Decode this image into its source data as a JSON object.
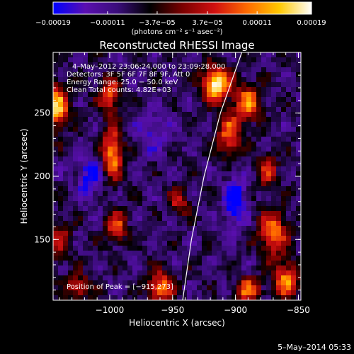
{
  "chart_data": {
    "type": "heatmap",
    "title": "Reconstructed RHESSI Image",
    "xlabel": "Heliocentric X (arcsec)",
    "ylabel": "Heliocentric Y (arcsec)",
    "xlim": [
      -1045,
      -848
    ],
    "ylim": [
      102,
      298
    ],
    "x_ticks": [
      -1000,
      -950,
      -900,
      -850
    ],
    "x_tick_labels": [
      "−1000",
      "−950",
      "−900",
      "−850"
    ],
    "y_ticks": [
      150,
      200,
      250
    ],
    "y_tick_labels": [
      "150",
      "200",
      "250"
    ],
    "colorbar": {
      "ticks": [
        -0.00019,
        -0.00011,
        -3.7e-05,
        3.7e-05,
        0.00011,
        0.00019
      ],
      "tick_labels": [
        "−0.00019",
        "−0.00011",
        "−3.7e−05",
        "3.7e−05",
        "0.00011",
        "0.00019"
      ],
      "range": [
        -0.00019,
        0.00019
      ],
      "unit_label": "(photons cm⁻² s⁻¹ asec⁻²)",
      "colors": [
        "#0000ff",
        "#5a0fb0",
        "#3a0d7a",
        "#000000",
        "#7a0000",
        "#d01010",
        "#ff6a00",
        "#ffc800",
        "#ffffff"
      ]
    },
    "annotations": [
      "4–May–2012 23:06:24.000 to 23:09:28.000",
      "Detectors: 3F 5F 6F 7F 8F 9F, Att 0",
      "Energy Range: 25.0 − 50.0 keV",
      "Clean     Total counts: 4.82E+03"
    ],
    "peak_label": "Position of Peak = [−915,273]",
    "peak": {
      "x": -915,
      "y": 273
    },
    "limb_curve": [
      [
        -942,
        102
      ],
      [
        -935,
        150
      ],
      [
        -925,
        200
      ],
      [
        -912,
        250
      ],
      [
        -895,
        298
      ]
    ],
    "intensity_map": {
      "note_units": "values are fractions of the colorbar range: -1 = -0.00019, +1 = +0.00019",
      "background": -0.45,
      "sources": [
        {
          "x": -915,
          "y": 273,
          "amp": 1.45,
          "sx": 8,
          "sy": 9
        },
        {
          "x": -890,
          "y": 258,
          "amp": 1.0,
          "sx": 7,
          "sy": 10
        },
        {
          "x": -905,
          "y": 233,
          "amp": 0.9,
          "sx": 7,
          "sy": 12
        },
        {
          "x": -875,
          "y": 205,
          "amp": 0.7,
          "sx": 6,
          "sy": 9
        },
        {
          "x": -870,
          "y": 155,
          "amp": 1.0,
          "sx": 8,
          "sy": 12
        },
        {
          "x": -860,
          "y": 118,
          "amp": 1.0,
          "sx": 7,
          "sy": 10
        },
        {
          "x": -890,
          "y": 110,
          "amp": 0.9,
          "sx": 7,
          "sy": 7
        },
        {
          "x": -960,
          "y": 112,
          "amp": 1.0,
          "sx": 7,
          "sy": 9
        },
        {
          "x": -998,
          "y": 218,
          "amp": 1.1,
          "sx": 6,
          "sy": 14
        },
        {
          "x": -1000,
          "y": 265,
          "amp": 0.9,
          "sx": 6,
          "sy": 10
        },
        {
          "x": -995,
          "y": 160,
          "amp": 0.8,
          "sx": 6,
          "sy": 9
        },
        {
          "x": -1042,
          "y": 255,
          "amp": 1.2,
          "sx": 7,
          "sy": 12
        },
        {
          "x": -1040,
          "y": 150,
          "amp": 0.6,
          "sx": 6,
          "sy": 12
        },
        {
          "x": -945,
          "y": 180,
          "amp": 0.6,
          "sx": 6,
          "sy": 8
        },
        {
          "x": -1025,
          "y": 112,
          "amp": 0.7,
          "sx": 7,
          "sy": 7
        },
        {
          "x": -1015,
          "y": 200,
          "amp": -0.6,
          "sx": 7,
          "sy": 12
        },
        {
          "x": -900,
          "y": 180,
          "amp": -0.7,
          "sx": 6,
          "sy": 14
        },
        {
          "x": -965,
          "y": 235,
          "amp": -0.35,
          "sx": 9,
          "sy": 12
        }
      ]
    }
  },
  "footer": {
    "date": "5–May–2014 05:33"
  }
}
